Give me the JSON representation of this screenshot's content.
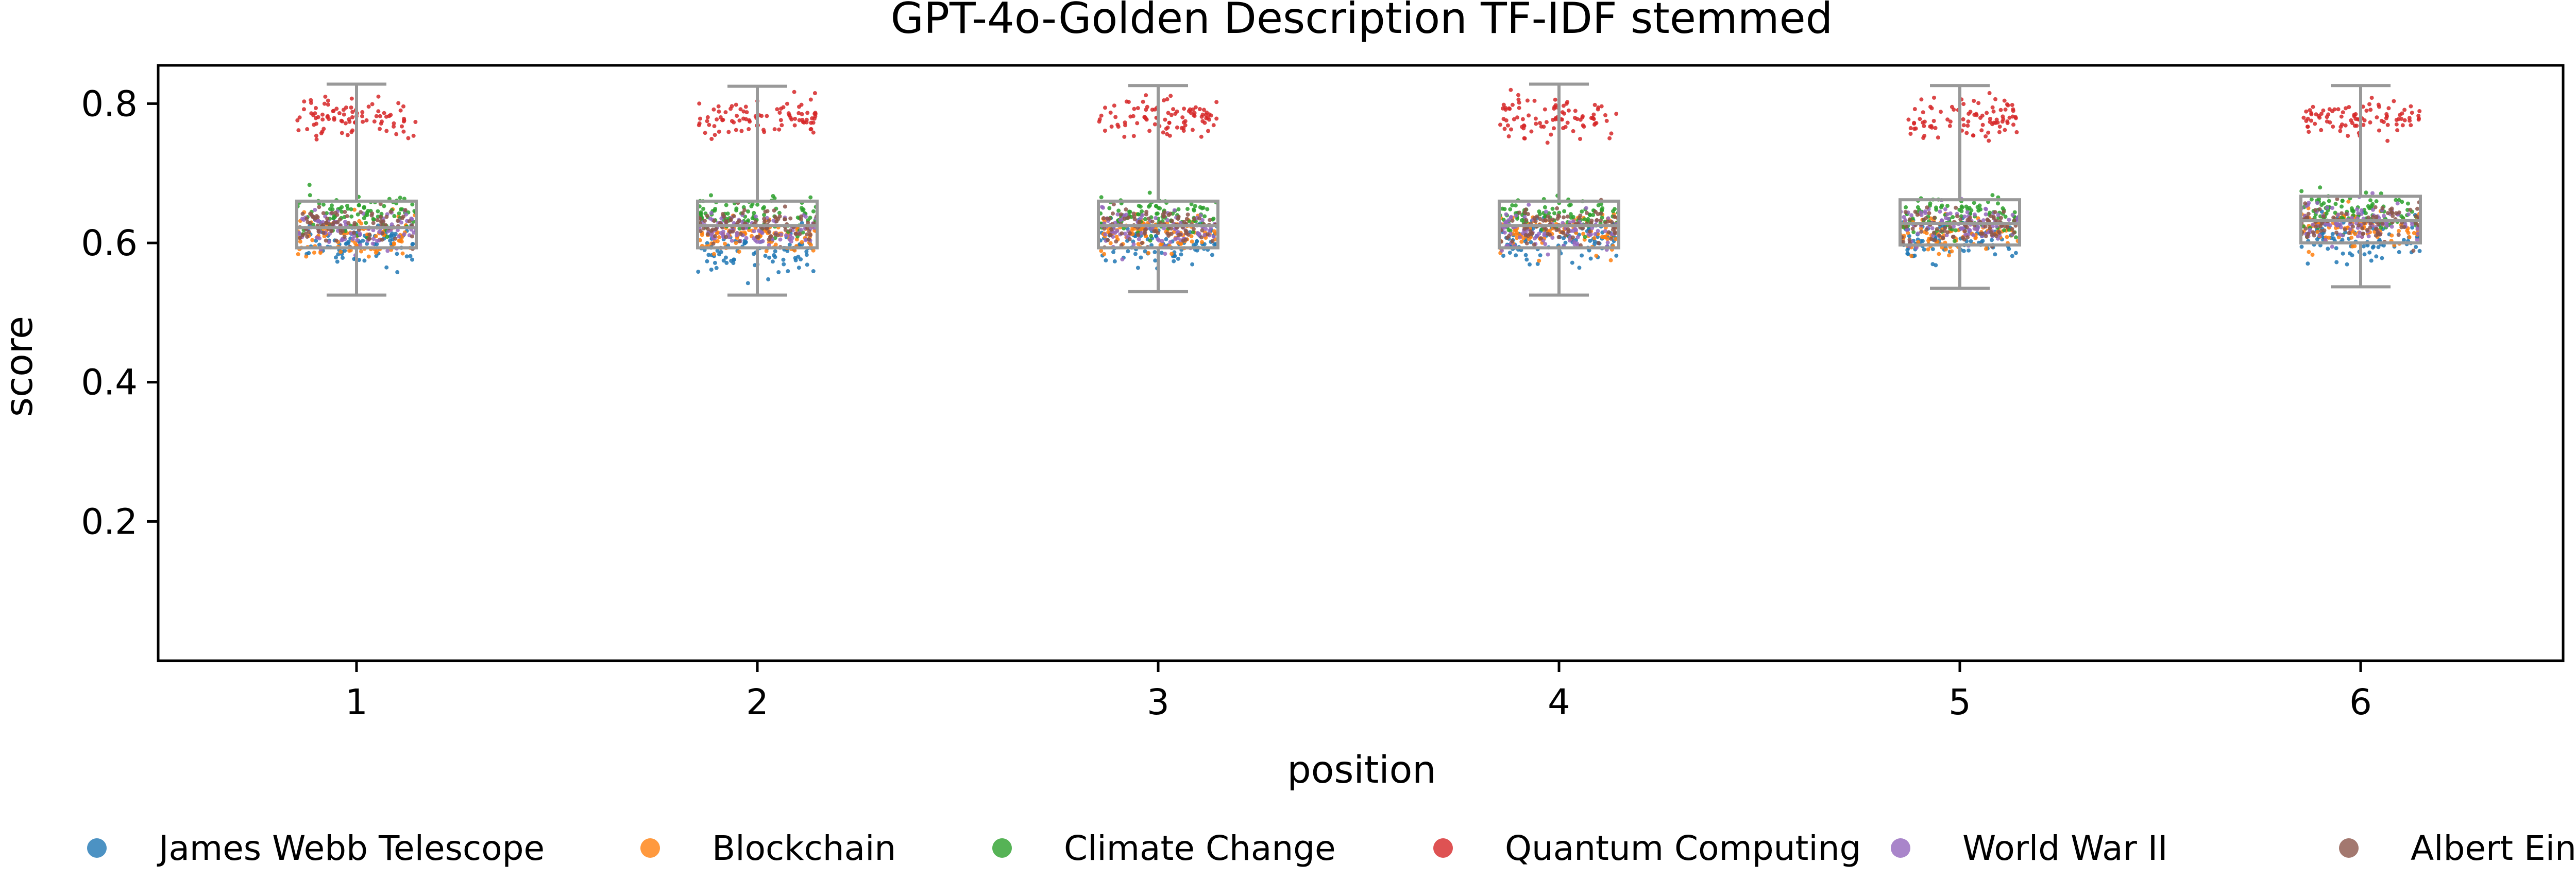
{
  "chart_data": {
    "type": "scatter",
    "subtype": "box-and-strip",
    "title": "GPT-4o-Golden Description TF-IDF stemmed",
    "xlabel": "position",
    "ylabel": "score",
    "categories": [
      "1",
      "2",
      "3",
      "4",
      "5",
      "6"
    ],
    "x_ticks": [
      "1",
      "2",
      "3",
      "4",
      "5",
      "6"
    ],
    "y_ticks": [
      "0.2",
      "0.4",
      "0.6",
      "0.8"
    ],
    "ylim": [
      0.0,
      0.855
    ],
    "grid": false,
    "legend_position": "bottom",
    "box_color": "#999999",
    "box_stats": [
      {
        "position": 1,
        "whisker_low": 0.525,
        "q1": 0.593,
        "median": 0.622,
        "q3": 0.66,
        "whisker_high": 0.828
      },
      {
        "position": 2,
        "whisker_low": 0.525,
        "q1": 0.593,
        "median": 0.625,
        "q3": 0.66,
        "whisker_high": 0.825
      },
      {
        "position": 3,
        "whisker_low": 0.53,
        "q1": 0.593,
        "median": 0.625,
        "q3": 0.66,
        "whisker_high": 0.826
      },
      {
        "position": 4,
        "whisker_low": 0.525,
        "q1": 0.593,
        "median": 0.625,
        "q3": 0.66,
        "whisker_high": 0.828
      },
      {
        "position": 5,
        "whisker_low": 0.535,
        "q1": 0.597,
        "median": 0.628,
        "q3": 0.662,
        "whisker_high": 0.826
      },
      {
        "position": 6,
        "whisker_low": 0.537,
        "q1": 0.6,
        "median": 0.632,
        "q3": 0.667,
        "whisker_high": 0.826
      }
    ],
    "series": [
      {
        "name": "James Webb Telescope",
        "color": "#1f77b4",
        "mean_score": [
          0.6,
          0.59,
          0.6,
          0.6,
          0.6,
          0.605
        ],
        "spread": [
          0.03,
          0.03,
          0.03,
          0.03,
          0.03,
          0.03
        ]
      },
      {
        "name": "Blockchain",
        "color": "#ff7f0e",
        "mean_score": [
          0.61,
          0.61,
          0.615,
          0.615,
          0.615,
          0.62
        ],
        "spread": [
          0.025,
          0.025,
          0.025,
          0.025,
          0.025,
          0.025
        ]
      },
      {
        "name": "Climate Change",
        "color": "#2ca02c",
        "mean_score": [
          0.64,
          0.64,
          0.64,
          0.64,
          0.64,
          0.645
        ],
        "spread": [
          0.025,
          0.025,
          0.025,
          0.025,
          0.025,
          0.025
        ]
      },
      {
        "name": "Quantum Computing",
        "color": "#d62728",
        "mean_score": [
          0.78,
          0.78,
          0.78,
          0.78,
          0.78,
          0.78
        ],
        "spread": [
          0.025,
          0.025,
          0.025,
          0.025,
          0.025,
          0.025
        ]
      },
      {
        "name": "World War II",
        "color": "#9467bd",
        "mean_score": [
          0.62,
          0.62,
          0.62,
          0.62,
          0.625,
          0.63
        ],
        "spread": [
          0.025,
          0.025,
          0.025,
          0.025,
          0.025,
          0.025
        ]
      },
      {
        "name": "Albert Einstein",
        "color": "#8c564b",
        "mean_score": [
          0.625,
          0.625,
          0.625,
          0.625,
          0.625,
          0.63
        ],
        "spread": [
          0.025,
          0.025,
          0.025,
          0.025,
          0.025,
          0.025
        ]
      }
    ]
  }
}
